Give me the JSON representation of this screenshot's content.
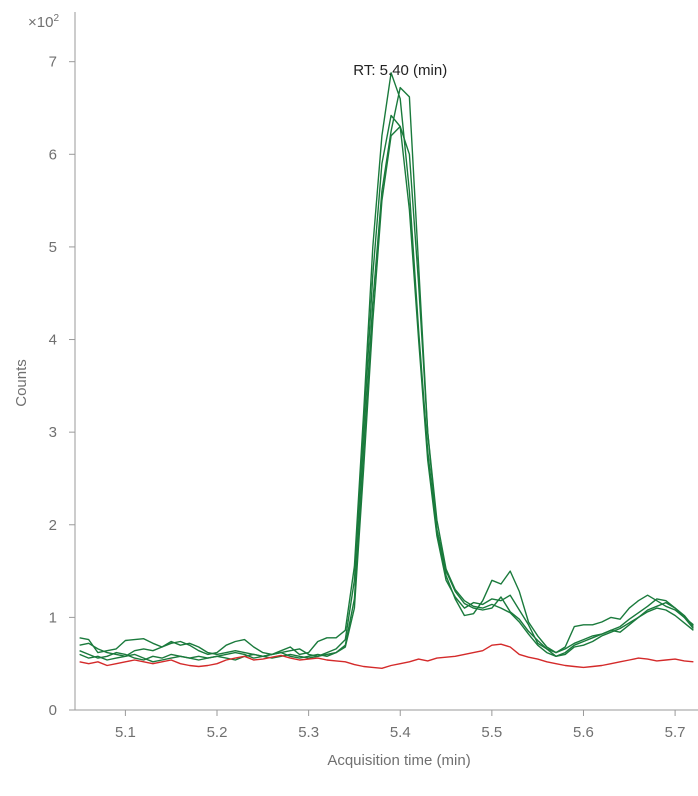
{
  "chart_data": {
    "type": "line",
    "xlabel": "Acquisition time (min)",
    "ylabel": "Counts",
    "y_multiplier_label": "×10",
    "y_multiplier_exp": "2",
    "annotation": "RT: 5.40 (min)",
    "annotation_x": 5.4,
    "xlim": [
      5.045,
      5.725
    ],
    "ylim": [
      0,
      7.45
    ],
    "x_ticks": [
      5.1,
      5.2,
      5.3,
      5.4,
      5.5,
      5.6,
      5.7
    ],
    "x_tick_labels": [
      "5.1",
      "5.2",
      "5.3",
      "5.4",
      "5.5",
      "5.6",
      "5.7"
    ],
    "y_ticks": [
      0,
      1,
      2,
      3,
      4,
      5,
      6,
      7
    ],
    "y_tick_labels": [
      "0",
      "1",
      "2",
      "3",
      "4",
      "5",
      "6",
      "7"
    ],
    "grid": false,
    "colors": {
      "quantifier": "#1a7a3c",
      "blank": "#d42a2a",
      "axis": "#9a9a9a",
      "text": "#707070"
    },
    "x": [
      5.05,
      5.06,
      5.07,
      5.08,
      5.09,
      5.1,
      5.11,
      5.12,
      5.13,
      5.14,
      5.15,
      5.16,
      5.17,
      5.18,
      5.19,
      5.2,
      5.21,
      5.22,
      5.23,
      5.24,
      5.25,
      5.26,
      5.27,
      5.28,
      5.29,
      5.3,
      5.31,
      5.32,
      5.33,
      5.34,
      5.35,
      5.36,
      5.37,
      5.38,
      5.39,
      5.4,
      5.41,
      5.42,
      5.43,
      5.44,
      5.45,
      5.46,
      5.47,
      5.48,
      5.49,
      5.5,
      5.51,
      5.52,
      5.53,
      5.54,
      5.55,
      5.56,
      5.57,
      5.58,
      5.59,
      5.6,
      5.61,
      5.62,
      5.63,
      5.64,
      5.65,
      5.66,
      5.67,
      5.68,
      5.69,
      5.7,
      5.71,
      5.72
    ],
    "series": [
      {
        "values": [
          0.78,
          0.76,
          0.62,
          0.64,
          0.66,
          0.75,
          0.76,
          0.77,
          0.72,
          0.68,
          0.72,
          0.74,
          0.7,
          0.64,
          0.6,
          0.62,
          0.7,
          0.74,
          0.76,
          0.68,
          0.62,
          0.6,
          0.64,
          0.68,
          0.6,
          0.62,
          0.74,
          0.78,
          0.78,
          0.86,
          1.55,
          3.2,
          5.0,
          6.2,
          6.88,
          6.6,
          5.6,
          4.1,
          2.8,
          1.9,
          1.45,
          1.2,
          1.02,
          1.04,
          1.18,
          1.4,
          1.36,
          1.5,
          1.28,
          0.95,
          0.8,
          0.68,
          0.62,
          0.68,
          0.9,
          0.92,
          0.92,
          0.95,
          1.0,
          0.98,
          1.1,
          1.18,
          1.24,
          1.18,
          1.12,
          1.08,
          1.0,
          0.92
        ]
      },
      {
        "values": [
          0.7,
          0.72,
          0.66,
          0.62,
          0.6,
          0.58,
          0.64,
          0.66,
          0.64,
          0.68,
          0.74,
          0.7,
          0.72,
          0.68,
          0.62,
          0.6,
          0.62,
          0.64,
          0.62,
          0.6,
          0.58,
          0.6,
          0.62,
          0.64,
          0.66,
          0.6,
          0.58,
          0.62,
          0.66,
          0.76,
          1.4,
          3.0,
          4.7,
          5.9,
          6.42,
          6.3,
          5.4,
          4.0,
          2.7,
          1.88,
          1.4,
          1.22,
          1.1,
          1.16,
          1.14,
          1.2,
          1.18,
          1.24,
          1.08,
          0.92,
          0.72,
          0.66,
          0.58,
          0.62,
          0.7,
          0.74,
          0.78,
          0.82,
          0.86,
          0.84,
          0.92,
          1.0,
          1.08,
          1.12,
          1.16,
          1.1,
          1.02,
          0.9
        ]
      },
      {
        "values": [
          0.64,
          0.6,
          0.56,
          0.58,
          0.62,
          0.6,
          0.56,
          0.54,
          0.58,
          0.56,
          0.6,
          0.58,
          0.56,
          0.58,
          0.56,
          0.58,
          0.6,
          0.62,
          0.6,
          0.56,
          0.58,
          0.6,
          0.62,
          0.58,
          0.56,
          0.58,
          0.6,
          0.58,
          0.62,
          0.7,
          1.2,
          2.8,
          4.4,
          5.6,
          6.25,
          6.72,
          6.62,
          4.8,
          3.0,
          1.95,
          1.5,
          1.28,
          1.15,
          1.1,
          1.08,
          1.1,
          1.22,
          1.06,
          0.98,
          0.85,
          0.75,
          0.66,
          0.62,
          0.66,
          0.72,
          0.76,
          0.8,
          0.82,
          0.86,
          0.9,
          0.98,
          1.05,
          1.12,
          1.2,
          1.18,
          1.1,
          1.0,
          0.88
        ]
      },
      {
        "values": [
          0.6,
          0.56,
          0.58,
          0.54,
          0.56,
          0.58,
          0.6,
          0.56,
          0.52,
          0.54,
          0.56,
          0.58,
          0.56,
          0.54,
          0.56,
          0.58,
          0.56,
          0.54,
          0.58,
          0.6,
          0.58,
          0.56,
          0.58,
          0.6,
          0.58,
          0.56,
          0.58,
          0.6,
          0.62,
          0.68,
          1.1,
          2.6,
          4.2,
          5.5,
          6.2,
          6.3,
          6.0,
          4.6,
          3.0,
          2.05,
          1.52,
          1.3,
          1.18,
          1.12,
          1.1,
          1.14,
          1.1,
          1.05,
          0.95,
          0.82,
          0.7,
          0.62,
          0.58,
          0.6,
          0.68,
          0.7,
          0.74,
          0.8,
          0.84,
          0.88,
          0.94,
          1.0,
          1.06,
          1.1,
          1.08,
          1.02,
          0.94,
          0.86
        ]
      },
      {
        "values": [
          0.52,
          0.5,
          0.52,
          0.48,
          0.5,
          0.52,
          0.54,
          0.52,
          0.5,
          0.52,
          0.54,
          0.5,
          0.48,
          0.47,
          0.48,
          0.5,
          0.54,
          0.56,
          0.58,
          0.54,
          0.55,
          0.57,
          0.59,
          0.56,
          0.54,
          0.55,
          0.56,
          0.54,
          0.53,
          0.52,
          0.49,
          0.47,
          0.46,
          0.45,
          0.48,
          0.5,
          0.52,
          0.55,
          0.53,
          0.56,
          0.57,
          0.58,
          0.6,
          0.62,
          0.64,
          0.7,
          0.71,
          0.68,
          0.6,
          0.57,
          0.55,
          0.52,
          0.5,
          0.48,
          0.47,
          0.46,
          0.47,
          0.48,
          0.5,
          0.52,
          0.54,
          0.56,
          0.55,
          0.53,
          0.54,
          0.55,
          0.53,
          0.52
        ]
      }
    ],
    "series_colors": [
      "#1a7a3c",
      "#1a7a3c",
      "#1a7a3c",
      "#1a7a3c",
      "#d42a2a"
    ]
  }
}
